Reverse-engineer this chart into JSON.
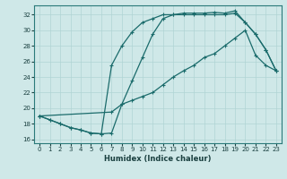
{
  "xlabel": "Humidex (Indice chaleur)",
  "background_color": "#cfe8e8",
  "line_color": "#1a6b6b",
  "grid_color": "#b0d4d4",
  "xlim": [
    -0.5,
    23.5
  ],
  "ylim": [
    15.5,
    33.2
  ],
  "xticks": [
    0,
    1,
    2,
    3,
    4,
    5,
    6,
    7,
    8,
    9,
    10,
    11,
    12,
    13,
    14,
    15,
    16,
    17,
    18,
    19,
    20,
    21,
    22,
    23
  ],
  "yticks": [
    16,
    18,
    20,
    22,
    24,
    26,
    28,
    30,
    32
  ],
  "curve1_x": [
    0,
    1,
    2,
    3,
    4,
    5,
    6,
    7,
    8,
    9,
    10,
    11,
    12,
    13,
    14,
    15,
    16,
    17,
    18,
    19,
    20,
    21,
    22,
    23
  ],
  "curve1_y": [
    19.0,
    18.5,
    18.0,
    17.5,
    17.2,
    16.8,
    16.7,
    16.8,
    20.5,
    23.5,
    26.5,
    29.5,
    31.5,
    32.0,
    32.2,
    32.2,
    32.2,
    32.3,
    32.2,
    32.5,
    31.0,
    29.5,
    27.5,
    24.8
  ],
  "curve2_x": [
    0,
    1,
    2,
    3,
    4,
    5,
    6,
    7,
    8,
    9,
    10,
    11,
    12,
    13,
    14,
    15,
    16,
    17,
    18,
    19,
    20,
    21,
    22,
    23
  ],
  "curve2_y": [
    19.0,
    18.5,
    18.0,
    17.5,
    17.2,
    16.8,
    16.7,
    25.5,
    28.0,
    29.8,
    31.0,
    31.5,
    32.0,
    32.0,
    32.0,
    32.0,
    32.0,
    32.0,
    32.0,
    32.2,
    31.0,
    29.5,
    27.5,
    24.8
  ],
  "curve3_x": [
    0,
    7,
    8,
    9,
    10,
    11,
    12,
    13,
    14,
    15,
    16,
    17,
    18,
    19,
    20,
    21,
    22,
    23
  ],
  "curve3_y": [
    19.0,
    19.5,
    20.5,
    21.0,
    21.5,
    22.0,
    23.0,
    24.0,
    24.8,
    25.5,
    26.5,
    27.0,
    28.0,
    29.0,
    30.0,
    26.8,
    25.5,
    24.8
  ]
}
